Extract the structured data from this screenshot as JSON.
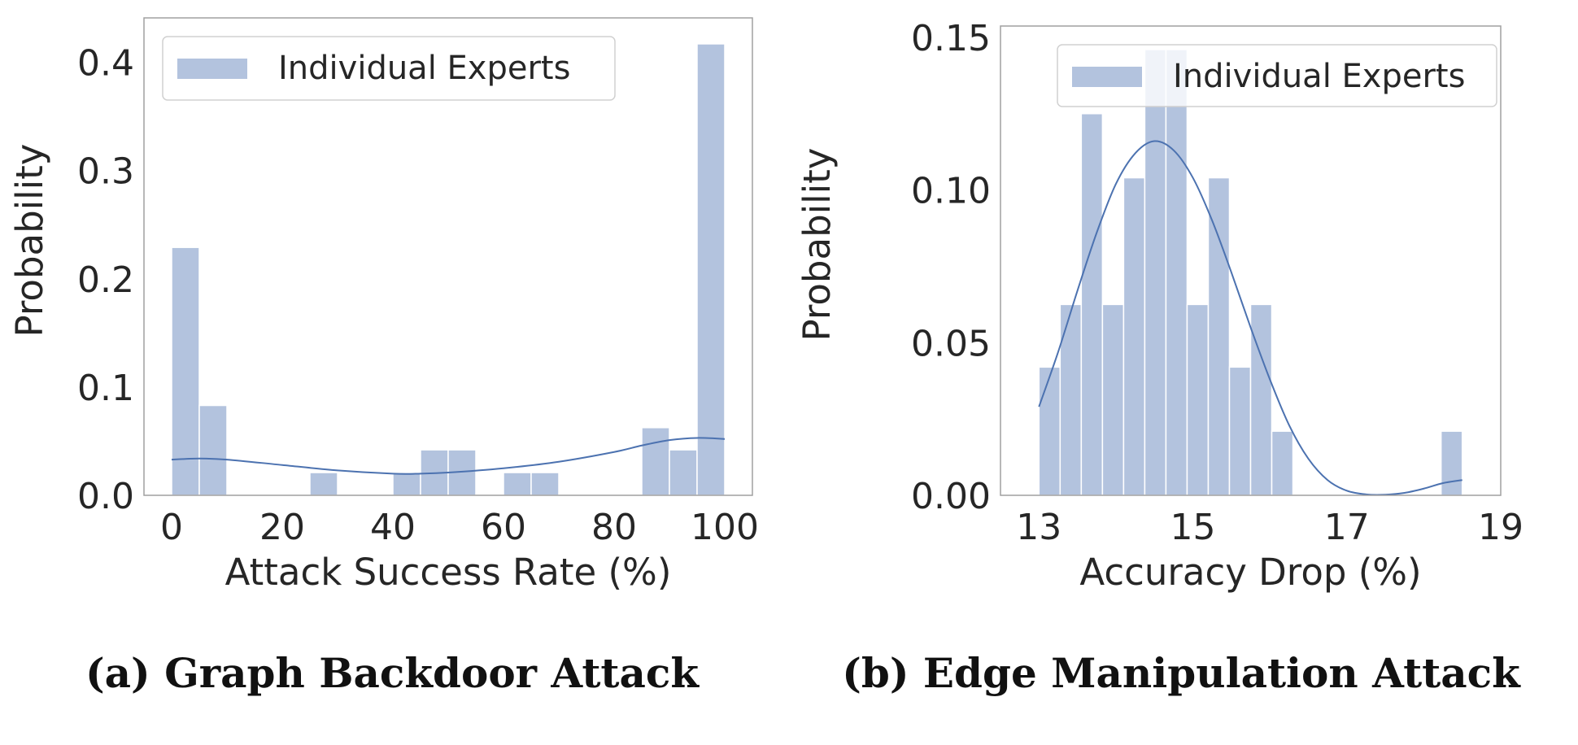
{
  "colors": {
    "bar": "#b3c3de",
    "kde": "#4c72b0",
    "frame": "#a0a0a0"
  },
  "chart_data": [
    {
      "type": "bar",
      "subtype": "histogram-with-kde",
      "caption": "(a) Graph Backdoor Attack",
      "xlabel": "Attack Success Rate (%)",
      "ylabel": "Probability",
      "legend": {
        "label": "Individual Experts",
        "placement": "top-left"
      },
      "xlim": [
        -5,
        105
      ],
      "ylim": [
        0,
        0.441
      ],
      "xticks": [
        0,
        20,
        40,
        60,
        80,
        100
      ],
      "xtick_labels": [
        "0",
        "20",
        "40",
        "60",
        "80",
        "100"
      ],
      "yticks": [
        0,
        0.1,
        0.2,
        0.3,
        0.4
      ],
      "ytick_labels": [
        "0.0",
        "0.1",
        "0.2",
        "0.3",
        "0.4"
      ],
      "grid": false,
      "bin_start": 0,
      "bin_width": 5,
      "values": [
        0.229,
        0.083,
        0,
        0,
        0,
        0.021,
        0,
        0,
        0.021,
        0.042,
        0.042,
        0,
        0.021,
        0.021,
        0,
        0,
        0,
        0.0625,
        0.042,
        0.417
      ],
      "kde": {
        "x": [
          0,
          5,
          10,
          20,
          30,
          40,
          45,
          50,
          60,
          70,
          80,
          85,
          90,
          95,
          100
        ],
        "y": [
          0.033,
          0.034,
          0.033,
          0.028,
          0.023,
          0.02,
          0.02,
          0.021,
          0.025,
          0.031,
          0.04,
          0.046,
          0.051,
          0.053,
          0.052
        ]
      }
    },
    {
      "type": "bar",
      "subtype": "histogram-with-kde",
      "caption": "(b) Edge Manipulation Attack",
      "xlabel": "Accuracy Drop (%)",
      "ylabel": "Probability",
      "legend": {
        "label": "Individual Experts",
        "placement": "top-right"
      },
      "xlim": [
        12.5,
        19
      ],
      "ylim": [
        0,
        0.1537
      ],
      "xticks": [
        13,
        15,
        17,
        19
      ],
      "xtick_labels": [
        "13",
        "15",
        "17",
        "19"
      ],
      "yticks": [
        0,
        0.05,
        0.1,
        0.15
      ],
      "ytick_labels": [
        "0.00",
        "0.05",
        "0.10",
        "0.15"
      ],
      "grid": false,
      "bin_start": 13,
      "bin_width": 0.275,
      "values": [
        0.042,
        0.0625,
        0.125,
        0.0625,
        0.104,
        0.146,
        0.146,
        0.0625,
        0.104,
        0.042,
        0.0625,
        0.021,
        0,
        0,
        0,
        0,
        0,
        0,
        0,
        0.021
      ],
      "kde": {
        "x": [
          13,
          13.25,
          13.5,
          13.75,
          14,
          14.25,
          14.5,
          14.75,
          15,
          15.25,
          15.5,
          15.75,
          16,
          16.25,
          16.5,
          16.75,
          17,
          17.25,
          17.5,
          17.75,
          18,
          18.25,
          18.5
        ],
        "y": [
          0.029,
          0.047,
          0.067,
          0.086,
          0.102,
          0.112,
          0.116,
          0.113,
          0.104,
          0.09,
          0.073,
          0.055,
          0.038,
          0.023,
          0.012,
          0.005,
          0.0015,
          0.0003,
          0.0002,
          0.0008,
          0.0022,
          0.004,
          0.005
        ]
      }
    }
  ]
}
